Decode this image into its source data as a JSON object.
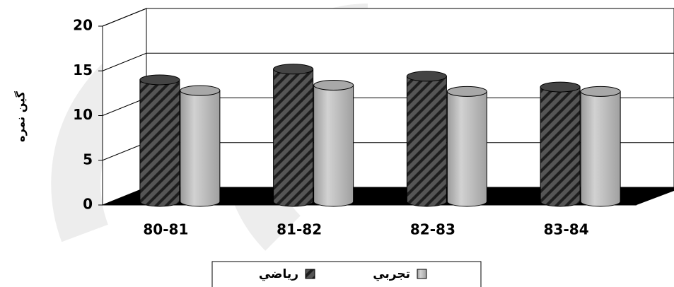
{
  "chart_data": {
    "type": "bar",
    "y_label": "گين نمره",
    "categories": [
      "80-81",
      "81-82",
      "82-83",
      "83-84"
    ],
    "series": [
      {
        "name": "رياضي",
        "color": "#3a3a3a",
        "values": [
          13.6,
          14.8,
          14.0,
          12.8
        ]
      },
      {
        "name": "تجربي",
        "color": "#b4b4b4",
        "values": [
          12.4,
          13.0,
          12.3,
          12.3
        ]
      }
    ],
    "ylim": [
      0,
      20
    ],
    "yticks": [
      0,
      5,
      10,
      15,
      20
    ],
    "grid": true
  }
}
